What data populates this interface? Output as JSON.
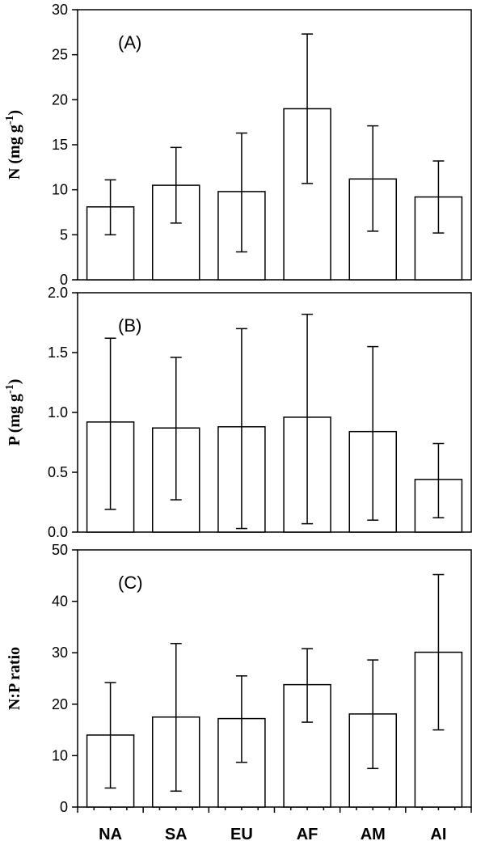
{
  "categories": [
    "NA",
    "SA",
    "EU",
    "AF",
    "AM",
    "AI"
  ],
  "chart_data": [
    {
      "type": "bar",
      "panel_label": "(A)",
      "ylabel": "N (mg g",
      "ylabel_sup": "-1",
      "ylabel_close": ")",
      "ylim": [
        0,
        30
      ],
      "yticks": [
        "0",
        "5",
        "10",
        "15",
        "20",
        "25",
        "30"
      ],
      "ytick_values": [
        0,
        5,
        10,
        15,
        20,
        25,
        30
      ],
      "values": [
        8.1,
        10.5,
        9.8,
        19.0,
        11.2,
        9.2
      ],
      "err_low": [
        5.0,
        6.3,
        3.1,
        10.7,
        5.4,
        5.2
      ],
      "err_high": [
        11.1,
        14.7,
        16.3,
        27.3,
        17.1,
        13.2
      ]
    },
    {
      "type": "bar",
      "panel_label": "(B)",
      "ylabel": "P (mg g",
      "ylabel_sup": "-1",
      "ylabel_close": ")",
      "ylim": [
        0,
        2.0
      ],
      "yticks": [
        "0.0",
        "0.5",
        "1.0",
        "1.5",
        "2.0"
      ],
      "ytick_values": [
        0,
        0.5,
        1.0,
        1.5,
        2.0
      ],
      "values": [
        0.92,
        0.87,
        0.88,
        0.96,
        0.84,
        0.44
      ],
      "err_low": [
        0.19,
        0.27,
        0.03,
        0.07,
        0.1,
        0.12
      ],
      "err_high": [
        1.62,
        1.46,
        1.7,
        1.82,
        1.55,
        0.74
      ]
    },
    {
      "type": "bar",
      "panel_label": "(C)",
      "ylabel": "N:P ratio",
      "ylabel_sup": "",
      "ylabel_close": "",
      "ylim": [
        0,
        50
      ],
      "yticks": [
        "0",
        "10",
        "20",
        "30",
        "40",
        "50"
      ],
      "ytick_values": [
        0,
        10,
        20,
        30,
        40,
        50
      ],
      "values": [
        14.0,
        17.5,
        17.2,
        23.8,
        18.1,
        30.1
      ],
      "err_low": [
        3.7,
        3.1,
        8.7,
        16.5,
        7.5,
        15.0
      ],
      "err_high": [
        24.2,
        31.8,
        25.5,
        30.8,
        28.6,
        45.2
      ]
    }
  ]
}
